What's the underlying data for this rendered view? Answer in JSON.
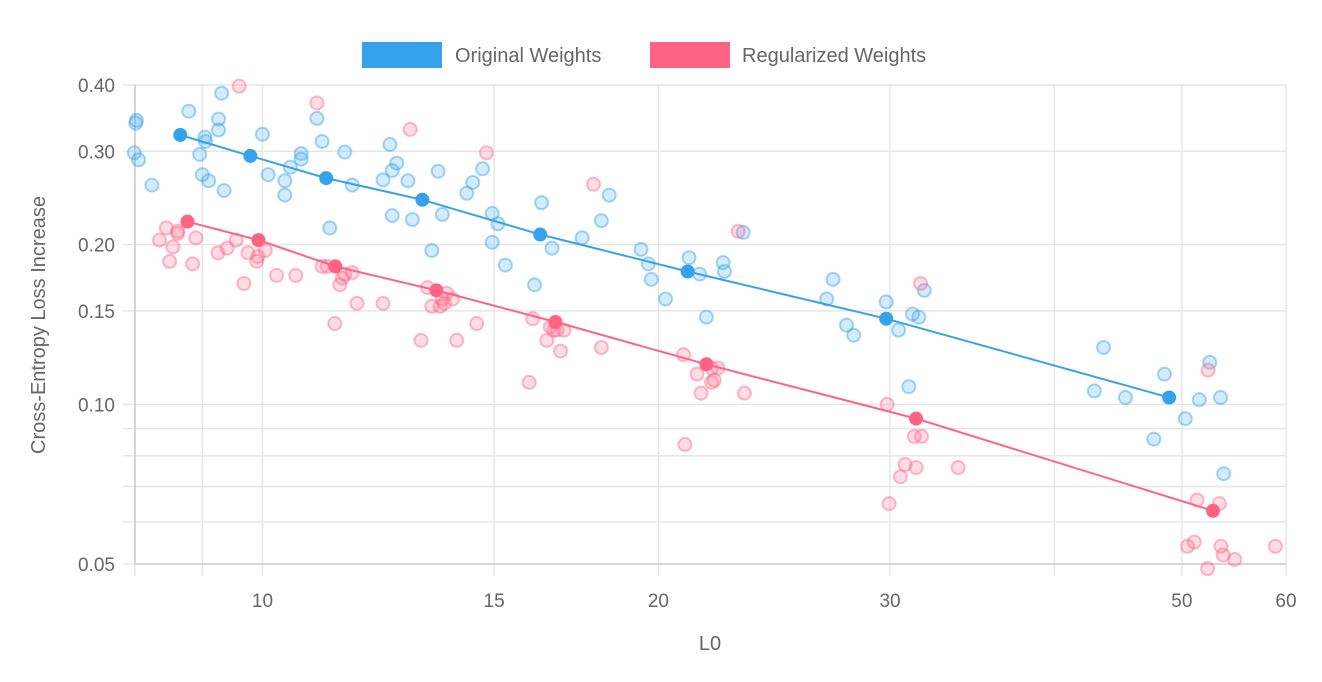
{
  "chart_data": {
    "type": "scatter",
    "title": "",
    "xlabel": "L0",
    "ylabel": "Cross-Entropy Loss Increase",
    "x_scale": "log",
    "y_scale": "log",
    "xlim": [
      8,
      60
    ],
    "ylim": [
      0.05,
      0.4
    ],
    "grid": true,
    "legend_position": "top-center",
    "x_ticks": [
      {
        "value": 10,
        "label": "10"
      },
      {
        "value": 15,
        "label": "15"
      },
      {
        "value": 20,
        "label": "20"
      },
      {
        "value": 30,
        "label": "30"
      },
      {
        "value": 50,
        "label": "50"
      },
      {
        "value": 60,
        "label": "60"
      }
    ],
    "x_gridlines": [
      8,
      9,
      10,
      15,
      20,
      30,
      40,
      50,
      60
    ],
    "y_ticks": [
      {
        "value": 0.4,
        "label": "0.40"
      },
      {
        "value": 0.3,
        "label": "0.30"
      },
      {
        "value": 0.2,
        "label": "0.20"
      },
      {
        "value": 0.15,
        "label": "0.15"
      },
      {
        "value": 0.1,
        "label": "0.10"
      },
      {
        "value": 0.05,
        "label": "0.05"
      }
    ],
    "y_gridlines": [
      0.4,
      0.3,
      0.2,
      0.15,
      0.1,
      0.09,
      0.08,
      0.07,
      0.06,
      0.05
    ],
    "series": [
      {
        "name": "Original Weights",
        "color": "#36a2eb",
        "trend": [
          [
            8.66,
            0.322
          ],
          [
            9.79,
            0.294
          ],
          [
            11.18,
            0.267
          ],
          [
            13.23,
            0.243
          ],
          [
            16.26,
            0.209
          ],
          [
            21.05,
            0.178
          ],
          [
            29.8,
            0.145
          ],
          [
            48.9,
            0.103
          ]
        ],
        "points": [
          [
            8.01,
            0.339
          ],
          [
            8.02,
            0.343
          ],
          [
            7.99,
            0.298
          ],
          [
            8.05,
            0.289
          ],
          [
            8.24,
            0.259
          ],
          [
            8.79,
            0.357
          ],
          [
            8.96,
            0.296
          ],
          [
            9.0,
            0.271
          ],
          [
            9.04,
            0.319
          ],
          [
            9.05,
            0.313
          ],
          [
            9.1,
            0.264
          ],
          [
            9.26,
            0.345
          ],
          [
            9.26,
            0.329
          ],
          [
            9.31,
            0.386
          ],
          [
            9.35,
            0.253
          ],
          [
            10.0,
            0.323
          ],
          [
            10.1,
            0.271
          ],
          [
            10.4,
            0.264
          ],
          [
            10.4,
            0.248
          ],
          [
            10.5,
            0.28
          ],
          [
            10.7,
            0.29
          ],
          [
            10.7,
            0.297
          ],
          [
            11.0,
            0.346
          ],
          [
            11.1,
            0.313
          ],
          [
            11.25,
            0.215
          ],
          [
            11.55,
            0.299
          ],
          [
            11.7,
            0.259
          ],
          [
            12.35,
            0.265
          ],
          [
            12.5,
            0.309
          ],
          [
            12.55,
            0.276
          ],
          [
            12.55,
            0.227
          ],
          [
            12.65,
            0.285
          ],
          [
            12.9,
            0.264
          ],
          [
            13.0,
            0.223
          ],
          [
            13.45,
            0.195
          ],
          [
            13.6,
            0.275
          ],
          [
            13.7,
            0.228
          ],
          [
            14.3,
            0.25
          ],
          [
            14.45,
            0.262
          ],
          [
            14.7,
            0.278
          ],
          [
            14.95,
            0.229
          ],
          [
            14.95,
            0.202
          ],
          [
            15.1,
            0.219
          ],
          [
            15.3,
            0.183
          ],
          [
            16.1,
            0.168
          ],
          [
            16.3,
            0.24
          ],
          [
            16.6,
            0.197
          ],
          [
            17.5,
            0.206
          ],
          [
            18.1,
            0.222
          ],
          [
            18.35,
            0.248
          ],
          [
            19.4,
            0.196
          ],
          [
            19.65,
            0.184
          ],
          [
            19.75,
            0.172
          ],
          [
            20.25,
            0.158
          ],
          [
            21.1,
            0.189
          ],
          [
            21.5,
            0.176
          ],
          [
            21.75,
            0.146
          ],
          [
            22.4,
            0.185
          ],
          [
            22.45,
            0.178
          ],
          [
            23.2,
            0.211
          ],
          [
            26.85,
            0.158
          ],
          [
            27.15,
            0.172
          ],
          [
            27.8,
            0.141
          ],
          [
            28.15,
            0.135
          ],
          [
            29.8,
            0.156
          ],
          [
            30.45,
            0.138
          ],
          [
            31.0,
            0.108
          ],
          [
            31.2,
            0.148
          ],
          [
            31.55,
            0.146
          ],
          [
            31.85,
            0.164
          ],
          [
            42.9,
            0.106
          ],
          [
            43.6,
            0.128
          ],
          [
            45.3,
            0.103
          ],
          [
            47.6,
            0.086
          ],
          [
            48.5,
            0.114
          ],
          [
            50.3,
            0.094
          ],
          [
            51.55,
            0.102
          ],
          [
            52.5,
            0.12
          ],
          [
            53.5,
            0.103
          ],
          [
            53.8,
            0.074
          ]
        ]
      },
      {
        "name": "Regularized Weights",
        "color": "#ff6384",
        "trend": [
          [
            8.77,
            0.221
          ],
          [
            9.93,
            0.204
          ],
          [
            11.36,
            0.182
          ],
          [
            13.56,
            0.164
          ],
          [
            16.7,
            0.143
          ],
          [
            21.75,
            0.119
          ],
          [
            31.4,
            0.094
          ],
          [
            52.8,
            0.063
          ]
        ],
        "points": [
          [
            8.35,
            0.204
          ],
          [
            8.45,
            0.215
          ],
          [
            8.55,
            0.198
          ],
          [
            8.5,
            0.186
          ],
          [
            8.62,
            0.21
          ],
          [
            8.62,
            0.212
          ],
          [
            8.85,
            0.184
          ],
          [
            8.9,
            0.206
          ],
          [
            9.25,
            0.193
          ],
          [
            9.4,
            0.197
          ],
          [
            9.55,
            0.204
          ],
          [
            9.6,
            0.398
          ],
          [
            9.68,
            0.169
          ],
          [
            9.75,
            0.193
          ],
          [
            9.9,
            0.186
          ],
          [
            9.92,
            0.19
          ],
          [
            10.05,
            0.195
          ],
          [
            10.25,
            0.175
          ],
          [
            10.6,
            0.175
          ],
          [
            11.0,
            0.37
          ],
          [
            11.1,
            0.182
          ],
          [
            11.2,
            0.182
          ],
          [
            11.35,
            0.142
          ],
          [
            11.45,
            0.168
          ],
          [
            11.5,
            0.173
          ],
          [
            11.55,
            0.176
          ],
          [
            11.7,
            0.177
          ],
          [
            11.8,
            0.155
          ],
          [
            12.35,
            0.155
          ],
          [
            12.95,
            0.33
          ],
          [
            13.2,
            0.132
          ],
          [
            13.35,
            0.166
          ],
          [
            13.45,
            0.153
          ],
          [
            13.65,
            0.153
          ],
          [
            13.7,
            0.158
          ],
          [
            13.75,
            0.155
          ],
          [
            13.8,
            0.162
          ],
          [
            13.95,
            0.158
          ],
          [
            14.05,
            0.132
          ],
          [
            14.55,
            0.142
          ],
          [
            14.8,
            0.298
          ],
          [
            15.95,
            0.11
          ],
          [
            16.05,
            0.145
          ],
          [
            16.45,
            0.132
          ],
          [
            16.55,
            0.14
          ],
          [
            16.65,
            0.138
          ],
          [
            16.75,
            0.138
          ],
          [
            16.85,
            0.126
          ],
          [
            16.95,
            0.138
          ],
          [
            17.85,
            0.26
          ],
          [
            18.1,
            0.128
          ],
          [
            20.9,
            0.124
          ],
          [
            20.95,
            0.084
          ],
          [
            21.4,
            0.114
          ],
          [
            21.55,
            0.105
          ],
          [
            21.95,
            0.11
          ],
          [
            21.95,
            0.117
          ],
          [
            22.05,
            0.111
          ],
          [
            22.2,
            0.117
          ],
          [
            23.0,
            0.212
          ],
          [
            23.25,
            0.105
          ],
          [
            29.85,
            0.1
          ],
          [
            29.95,
            0.065
          ],
          [
            30.55,
            0.073
          ],
          [
            30.8,
            0.077
          ],
          [
            31.3,
            0.087
          ],
          [
            31.4,
            0.076
          ],
          [
            31.7,
            0.087
          ],
          [
            31.65,
            0.169
          ],
          [
            33.8,
            0.076
          ],
          [
            50.5,
            0.054
          ],
          [
            51.1,
            0.055
          ],
          [
            51.35,
            0.066
          ],
          [
            52.3,
            0.049
          ],
          [
            52.35,
            0.116
          ],
          [
            53.55,
            0.054
          ],
          [
            53.75,
            0.052
          ],
          [
            53.4,
            0.065
          ],
          [
            54.85,
            0.051
          ],
          [
            58.9,
            0.054
          ]
        ]
      }
    ]
  }
}
